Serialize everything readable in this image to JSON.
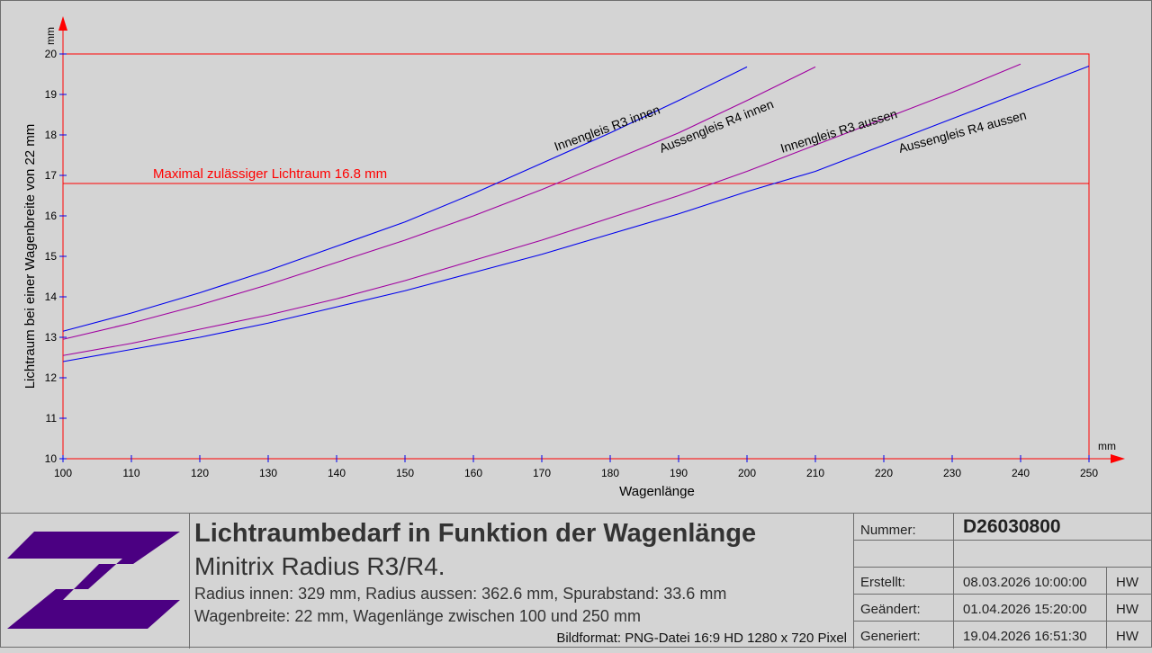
{
  "chart_data": {
    "type": "line",
    "xlabel": "Wagenlänge",
    "ylabel": "Lichtraum bei einer Wagenbreite von 22 mm",
    "x_unit": "mm",
    "y_unit": "mm",
    "xlim": [
      100,
      250
    ],
    "ylim": [
      10,
      20
    ],
    "x_ticks": [
      100,
      110,
      120,
      130,
      140,
      150,
      160,
      170,
      180,
      190,
      200,
      210,
      220,
      230,
      240,
      250
    ],
    "y_ticks": [
      10,
      11,
      12,
      13,
      14,
      15,
      16,
      17,
      18,
      19,
      20
    ],
    "grid": false,
    "limit_line": {
      "value": 16.8,
      "label": "Maximal zulässiger Lichtraum 16.8 mm",
      "color": "#ff0000"
    },
    "series": [
      {
        "name": "Innengleis R3 innen",
        "color": "#0000ee",
        "x": [
          100,
          110,
          120,
          130,
          140,
          150,
          160,
          170,
          180,
          190,
          200
        ],
        "y": [
          13.15,
          13.6,
          14.1,
          14.65,
          15.25,
          15.85,
          16.55,
          17.3,
          18.05,
          18.85,
          19.68
        ]
      },
      {
        "name": "Aussengleis R4 innen",
        "color": "#a000a0",
        "x": [
          100,
          110,
          120,
          130,
          140,
          150,
          160,
          170,
          180,
          190,
          200,
          210
        ],
        "y": [
          12.95,
          13.35,
          13.8,
          14.3,
          14.85,
          15.4,
          16.0,
          16.65,
          17.35,
          18.05,
          18.85,
          19.68
        ]
      },
      {
        "name": "Innengleis R3 aussen",
        "color": "#a000a0",
        "x": [
          100,
          110,
          120,
          130,
          140,
          150,
          160,
          170,
          180,
          190,
          200,
          210,
          220,
          230,
          240
        ],
        "y": [
          12.55,
          12.85,
          13.2,
          13.55,
          13.95,
          14.4,
          14.9,
          15.4,
          15.95,
          16.5,
          17.1,
          17.75,
          18.4,
          19.05,
          19.75
        ]
      },
      {
        "name": "Aussengleis R4 aussen",
        "color": "#0000ee",
        "x": [
          100,
          110,
          120,
          130,
          140,
          150,
          160,
          170,
          180,
          190,
          200,
          210,
          220,
          230,
          240,
          250
        ],
        "y": [
          12.4,
          12.7,
          13.0,
          13.35,
          13.75,
          14.15,
          14.6,
          15.05,
          15.55,
          16.05,
          16.6,
          17.1,
          17.75,
          18.4,
          19.05,
          19.7
        ]
      }
    ],
    "colors": {
      "axis": "#ff0000",
      "frame": "#ff0000"
    }
  },
  "titleblock": {
    "title": "Lichtraumbedarf in Funktion der Wagenlänge",
    "subtitle": "Minitrix Radius R3/R4.",
    "line1": "Radius innen: 329 mm, Radius aussen: 362.6 mm, Spurabstand: 33.6 mm",
    "line2": "Wagenbreite: 22 mm, Wagenlänge zwischen 100 und 250 mm",
    "format": "Bildformat: PNG-Datei 16:9 HD 1280 x 720 Pixel",
    "logo_color": "#4b0082",
    "nummer_label": "Nummer:",
    "nummer": "D26030800",
    "erstellt_label": "Erstellt:",
    "erstellt": "08.03.2026 10:00:00",
    "erstellt_by": "HW",
    "geaendert_label": "Geändert:",
    "geaendert": "01.04.2026 15:20:00",
    "geaendert_by": "HW",
    "generiert_label": "Generiert:",
    "generiert": "19.04.2026 16:51:30",
    "generiert_by": "HW"
  }
}
